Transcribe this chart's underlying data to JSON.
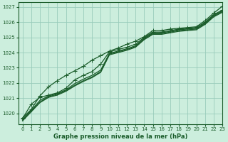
{
  "xlabel": "Graphe pression niveau de la mer (hPa)",
  "bg_color": "#cceedd",
  "plot_bg_color": "#cceedd",
  "grid_color": "#99ccbb",
  "line_color": "#1a5c2a",
  "xlim": [
    -0.5,
    23
  ],
  "ylim": [
    1019.3,
    1027.3
  ],
  "yticks": [
    1020,
    1021,
    1022,
    1023,
    1024,
    1025,
    1026,
    1027
  ],
  "xticks": [
    0,
    1,
    2,
    3,
    4,
    5,
    6,
    7,
    8,
    9,
    10,
    11,
    12,
    13,
    14,
    15,
    16,
    17,
    18,
    19,
    20,
    21,
    22,
    23
  ],
  "lines": [
    {
      "y": [
        1019.5,
        1020.1,
        1020.7,
        1021.05,
        1021.2,
        1021.45,
        1021.8,
        1022.1,
        1022.35,
        1022.7,
        1023.85,
        1024.0,
        1024.15,
        1024.35,
        1024.85,
        1025.2,
        1025.2,
        1025.3,
        1025.4,
        1025.45,
        1025.5,
        1025.85,
        1026.35,
        1026.65
      ],
      "marker": false,
      "lw": 0.9
    },
    {
      "y": [
        1019.55,
        1020.15,
        1020.75,
        1021.1,
        1021.25,
        1021.5,
        1021.85,
        1022.15,
        1022.4,
        1022.75,
        1023.9,
        1024.05,
        1024.2,
        1024.4,
        1024.9,
        1025.25,
        1025.25,
        1025.35,
        1025.45,
        1025.5,
        1025.55,
        1025.9,
        1026.4,
        1026.7
      ],
      "marker": false,
      "lw": 0.9
    },
    {
      "y": [
        1019.6,
        1020.2,
        1020.85,
        1021.15,
        1021.3,
        1021.55,
        1021.95,
        1022.25,
        1022.5,
        1022.85,
        1023.95,
        1024.1,
        1024.25,
        1024.45,
        1024.95,
        1025.3,
        1025.3,
        1025.4,
        1025.5,
        1025.55,
        1025.6,
        1025.95,
        1026.45,
        1026.75
      ],
      "marker": false,
      "lw": 0.9
    },
    {
      "y": [
        1019.65,
        1020.6,
        1021.05,
        1021.2,
        1021.35,
        1021.65,
        1022.2,
        1022.5,
        1022.75,
        1023.25,
        1024.05,
        1024.2,
        1024.35,
        1024.55,
        1025.0,
        1025.35,
        1025.35,
        1025.45,
        1025.55,
        1025.6,
        1025.65,
        1026.0,
        1026.5,
        1026.8
      ],
      "marker": true,
      "lw": 0.9
    },
    {
      "y": [
        1019.7,
        1020.25,
        1021.15,
        1021.75,
        1022.15,
        1022.5,
        1022.8,
        1023.1,
        1023.5,
        1023.8,
        1024.1,
        1024.3,
        1024.55,
        1024.75,
        1025.05,
        1025.45,
        1025.45,
        1025.55,
        1025.6,
        1025.65,
        1025.7,
        1026.1,
        1026.6,
        1027.05
      ],
      "marker": true,
      "lw": 0.9
    }
  ],
  "marker": "+",
  "marker_size": 4,
  "tick_fontsize": 5,
  "xlabel_fontsize": 6
}
